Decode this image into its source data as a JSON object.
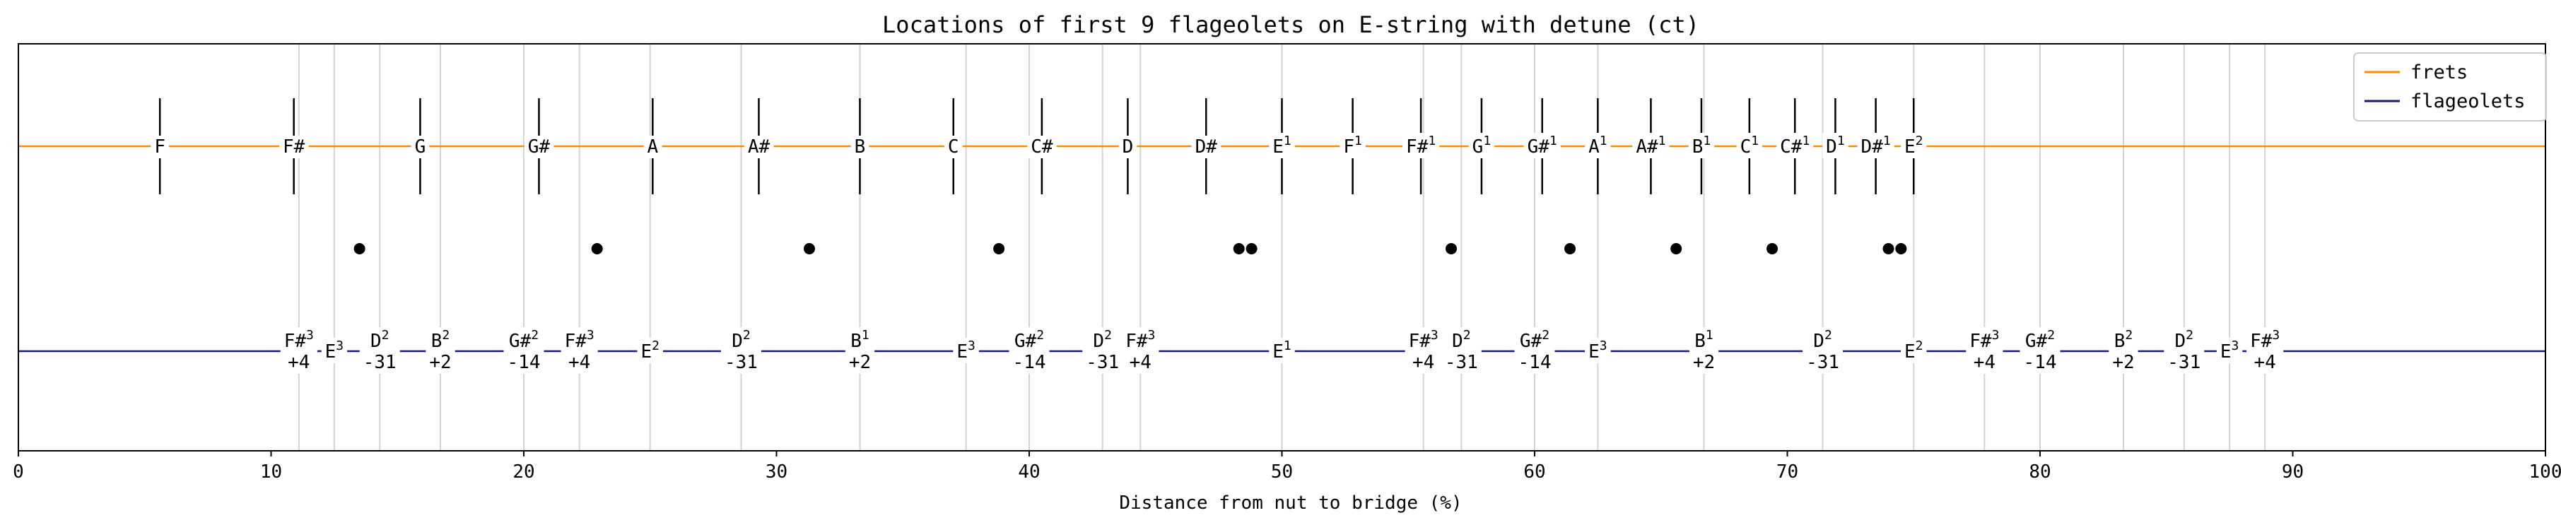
{
  "chart_data": {
    "type": "scatter",
    "title": "Locations of first 9 flageolets on E-string with detune (ct)",
    "xlabel": "Distance from nut to bridge (%)",
    "xlim": [
      0,
      100
    ],
    "xticks": [
      0,
      10,
      20,
      30,
      40,
      50,
      60,
      70,
      80,
      90,
      100
    ],
    "legend": {
      "placement": "top-right",
      "entries": [
        "frets",
        "flageolets"
      ]
    },
    "colors": {
      "frets": "#ff8c00",
      "flageolets": "#191970",
      "grid": "#d3d3d3",
      "ticks": "#000000",
      "dots": "#000000"
    },
    "grid_lines_x": [
      11.1,
      12.5,
      14.3,
      16.7,
      20.0,
      22.2,
      25.0,
      28.6,
      33.3,
      37.5,
      40.0,
      42.9,
      44.4,
      50.0,
      55.6,
      57.1,
      60.0,
      62.5,
      66.7,
      71.4,
      75.0,
      77.8,
      80.0,
      83.3,
      85.7,
      87.5,
      88.9
    ],
    "frets": [
      {
        "x": 5.6,
        "note": "F",
        "sup": ""
      },
      {
        "x": 10.9,
        "note": "F#",
        "sup": ""
      },
      {
        "x": 15.9,
        "note": "G",
        "sup": ""
      },
      {
        "x": 20.6,
        "note": "G#",
        "sup": ""
      },
      {
        "x": 25.1,
        "note": "A",
        "sup": ""
      },
      {
        "x": 29.3,
        "note": "A#",
        "sup": ""
      },
      {
        "x": 33.3,
        "note": "B",
        "sup": ""
      },
      {
        "x": 37.0,
        "note": "C",
        "sup": ""
      },
      {
        "x": 40.5,
        "note": "C#",
        "sup": ""
      },
      {
        "x": 43.9,
        "note": "D",
        "sup": ""
      },
      {
        "x": 47.0,
        "note": "D#",
        "sup": ""
      },
      {
        "x": 50.0,
        "note": "E",
        "sup": "1"
      },
      {
        "x": 52.8,
        "note": "F",
        "sup": "1"
      },
      {
        "x": 55.5,
        "note": "F#",
        "sup": "1"
      },
      {
        "x": 57.9,
        "note": "G",
        "sup": "1"
      },
      {
        "x": 60.3,
        "note": "G#",
        "sup": "1"
      },
      {
        "x": 62.5,
        "note": "A",
        "sup": "1"
      },
      {
        "x": 64.6,
        "note": "A#",
        "sup": "1"
      },
      {
        "x": 66.6,
        "note": "B",
        "sup": "1"
      },
      {
        "x": 68.5,
        "note": "C",
        "sup": "1"
      },
      {
        "x": 70.3,
        "note": "C#",
        "sup": "1"
      },
      {
        "x": 71.9,
        "note": "D",
        "sup": "1"
      },
      {
        "x": 73.5,
        "note": "D#",
        "sup": "1"
      },
      {
        "x": 75.0,
        "note": "E",
        "sup": "2"
      }
    ],
    "dots_x": [
      13.5,
      22.9,
      31.3,
      38.8,
      48.3,
      48.8,
      56.7,
      61.4,
      65.6,
      69.4,
      74.0,
      74.5
    ],
    "flageolets": [
      {
        "x": 11.1,
        "note": "F#",
        "sup": "3",
        "detune": "+4"
      },
      {
        "x": 12.5,
        "note": "E",
        "sup": "3",
        "detune": ""
      },
      {
        "x": 14.3,
        "note": "D",
        "sup": "2",
        "detune": "-31"
      },
      {
        "x": 16.7,
        "note": "B",
        "sup": "2",
        "detune": "+2"
      },
      {
        "x": 20.0,
        "note": "G#",
        "sup": "2",
        "detune": "-14"
      },
      {
        "x": 22.2,
        "note": "F#",
        "sup": "3",
        "detune": "+4"
      },
      {
        "x": 25.0,
        "note": "E",
        "sup": "2",
        "detune": ""
      },
      {
        "x": 28.6,
        "note": "D",
        "sup": "2",
        "detune": "-31"
      },
      {
        "x": 33.3,
        "note": "B",
        "sup": "1",
        "detune": "+2"
      },
      {
        "x": 37.5,
        "note": "E",
        "sup": "3",
        "detune": ""
      },
      {
        "x": 40.0,
        "note": "G#",
        "sup": "2",
        "detune": "-14"
      },
      {
        "x": 42.9,
        "note": "D",
        "sup": "2",
        "detune": "-31"
      },
      {
        "x": 44.4,
        "note": "F#",
        "sup": "3",
        "detune": "+4"
      },
      {
        "x": 50.0,
        "note": "E",
        "sup": "1",
        "detune": ""
      },
      {
        "x": 55.6,
        "note": "F#",
        "sup": "3",
        "detune": "+4"
      },
      {
        "x": 57.1,
        "note": "D",
        "sup": "2",
        "detune": "-31"
      },
      {
        "x": 60.0,
        "note": "G#",
        "sup": "2",
        "detune": "-14"
      },
      {
        "x": 62.5,
        "note": "E",
        "sup": "3",
        "detune": ""
      },
      {
        "x": 66.7,
        "note": "B",
        "sup": "1",
        "detune": "+2"
      },
      {
        "x": 71.4,
        "note": "D",
        "sup": "2",
        "detune": "-31"
      },
      {
        "x": 75.0,
        "note": "E",
        "sup": "2",
        "detune": ""
      },
      {
        "x": 77.8,
        "note": "F#",
        "sup": "3",
        "detune": "+4"
      },
      {
        "x": 80.0,
        "note": "G#",
        "sup": "2",
        "detune": "-14"
      },
      {
        "x": 83.3,
        "note": "B",
        "sup": "2",
        "detune": "+2"
      },
      {
        "x": 85.7,
        "note": "D",
        "sup": "2",
        "detune": "-31"
      },
      {
        "x": 87.5,
        "note": "E",
        "sup": "3",
        "detune": ""
      },
      {
        "x": 88.9,
        "note": "F#",
        "sup": "3",
        "detune": "+4"
      }
    ]
  }
}
